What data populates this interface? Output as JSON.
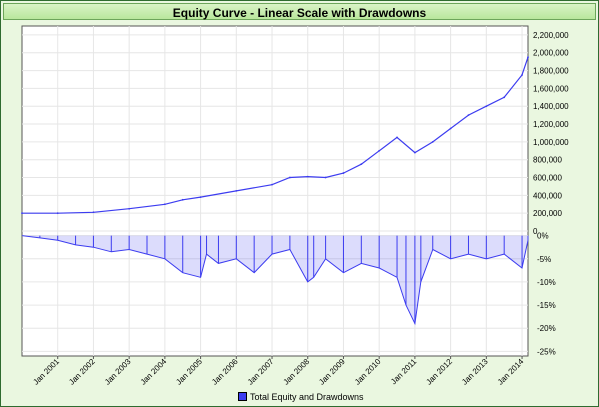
{
  "chart_data": {
    "type": "line",
    "title": "Equity Curve - Linear Scale with Drawdowns",
    "x_tick_labels": [
      "Jan 2001",
      "Jan 2002",
      "Jan 2003",
      "Jan 2004",
      "Jan 2005",
      "Jan 2006",
      "Jan 2007",
      "Jan 2008",
      "Jan 2009",
      "Jan 2010",
      "Jan 2011",
      "Jan 2012",
      "Jan 2013",
      "Jan 2014"
    ],
    "x_range": [
      "Jan 2000",
      "Mar 2014"
    ],
    "equity_panel": {
      "y_tick_labels": [
        "0",
        "200,000",
        "400,000",
        "600,000",
        "800,000",
        "1,000,000",
        "1,200,000",
        "1,400,000",
        "1,600,000",
        "1,800,000",
        "2,000,000",
        "2,200,000"
      ],
      "ylim": [
        0,
        2300000
      ],
      "x": [
        "Jan 2000",
        "Jan 2001",
        "Jan 2002",
        "Jan 2003",
        "Jan 2004",
        "Jul 2004",
        "Jan 2005",
        "Jan 2006",
        "Jan 2007",
        "Jul 2007",
        "Jan 2008",
        "Jul 2008",
        "Jan 2009",
        "Jul 2009",
        "Jan 2010",
        "Jul 2010",
        "Jan 2011",
        "Jul 2011",
        "Jan 2012",
        "Jul 2012",
        "Jan 2013",
        "Jul 2013",
        "Jan 2014",
        "Mar 2014"
      ],
      "y": [
        200000,
        200000,
        210000,
        250000,
        300000,
        350000,
        380000,
        450000,
        520000,
        600000,
        610000,
        600000,
        650000,
        750000,
        900000,
        1050000,
        880000,
        1000000,
        1150000,
        1300000,
        1400000,
        1500000,
        1750000,
        1950000
      ]
    },
    "drawdown_panel": {
      "y_tick_labels": [
        "0%",
        "-5%",
        "-10%",
        "-15%",
        "-20%",
        "-25%"
      ],
      "ylim": [
        -26,
        1
      ],
      "x": [
        "Jan 2000",
        "Jul 2000",
        "Jan 2001",
        "Jul 2001",
        "Jan 2002",
        "Jul 2002",
        "Jan 2003",
        "Jul 2003",
        "Jan 2004",
        "Jul 2004",
        "Jan 2005",
        "Mar 2005",
        "Jul 2005",
        "Jan 2006",
        "Jul 2006",
        "Jan 2007",
        "Jul 2007",
        "Jan 2008",
        "Mar 2008",
        "Jul 2008",
        "Jan 2009",
        "Jul 2009",
        "Jan 2010",
        "Jul 2010",
        "Oct 2010",
        "Jan 2011",
        "Mar 2011",
        "Jul 2011",
        "Jan 2012",
        "Jul 2012",
        "Jan 2013",
        "Jul 2013",
        "Jan 2014",
        "Mar 2014"
      ],
      "y": [
        0,
        -0.5,
        -1,
        -2,
        -2.5,
        -3.5,
        -3,
        -4,
        -5,
        -8,
        -9,
        -4,
        -6,
        -5,
        -8,
        -4,
        -3,
        -10,
        -9,
        -5,
        -8,
        -6,
        -7,
        -9,
        -15,
        -19,
        -10,
        -3,
        -5,
        -4,
        -5,
        -4,
        -7,
        -1
      ]
    },
    "legend": [
      "Total Equity and Drawdowns"
    ],
    "series_color": "#3c3cf0",
    "grid": true
  }
}
